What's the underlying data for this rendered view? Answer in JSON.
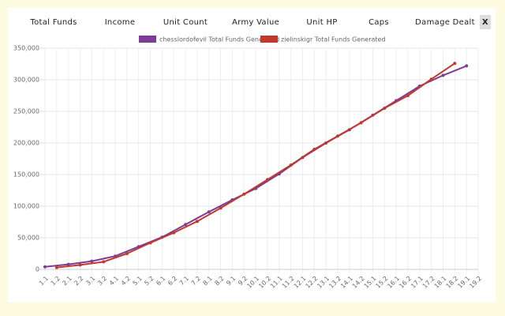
{
  "tabs": [
    "Total Funds",
    "Income",
    "Unit Count",
    "Army Value",
    "Unit HP",
    "Caps",
    "Damage Dealt"
  ],
  "close": "X",
  "chart_data": {
    "type": "line",
    "categories": [
      "1.1",
      "1.2",
      "2.1",
      "2.2",
      "3.1",
      "3.2",
      "4.1",
      "4.2",
      "5.1",
      "5.2",
      "6.1",
      "6.2",
      "7.1",
      "7.2",
      "8.1",
      "8.2",
      "9.1",
      "9.2",
      "10.1",
      "10.2",
      "11.1",
      "11.2",
      "12.1",
      "12.2",
      "13.1",
      "13.2",
      "14.1",
      "14.2",
      "15.1",
      "15.2",
      "16.1",
      "16.2",
      "17.1",
      "17.2",
      "18.1",
      "18.2",
      "19.1",
      "19.2"
    ],
    "series": [
      {
        "name": "chesslordofevil Total Funds Generated",
        "color": "#7d3c98",
        "values": [
          4000,
          null,
          8000,
          null,
          13000,
          null,
          21000,
          null,
          36000,
          null,
          51000,
          null,
          71000,
          null,
          91000,
          null,
          110000,
          null,
          128000,
          null,
          151000,
          null,
          177000,
          null,
          200000,
          null,
          221000,
          null,
          244000,
          null,
          267000,
          null,
          290000,
          null,
          307000,
          null,
          322000,
          null
        ]
      },
      {
        "name": "zielinskigr Total Funds Generated",
        "color": "#c0392b",
        "values": [
          null,
          3000,
          null,
          7000,
          null,
          12000,
          null,
          25000,
          null,
          42000,
          null,
          58000,
          null,
          76000,
          null,
          97000,
          null,
          119000,
          null,
          142000,
          null,
          165000,
          null,
          190000,
          null,
          211000,
          null,
          232000,
          null,
          255000,
          null,
          275000,
          null,
          301000,
          null,
          326000,
          null,
          null
        ]
      }
    ],
    "ylim": [
      0,
      350000
    ],
    "yticks": [
      0,
      {
        "value": 50000,
        "label": "50,000"
      },
      {
        "value": 100000,
        "label": "100,000"
      },
      {
        "value": 150000,
        "label": "150,000"
      },
      {
        "value": 200000,
        "label": "200,000"
      },
      {
        "value": 250000,
        "label": "250,000"
      },
      {
        "value": 300000,
        "label": "300,000"
      },
      {
        "value": 350000,
        "label": "350,000"
      }
    ],
    "grid": true
  }
}
